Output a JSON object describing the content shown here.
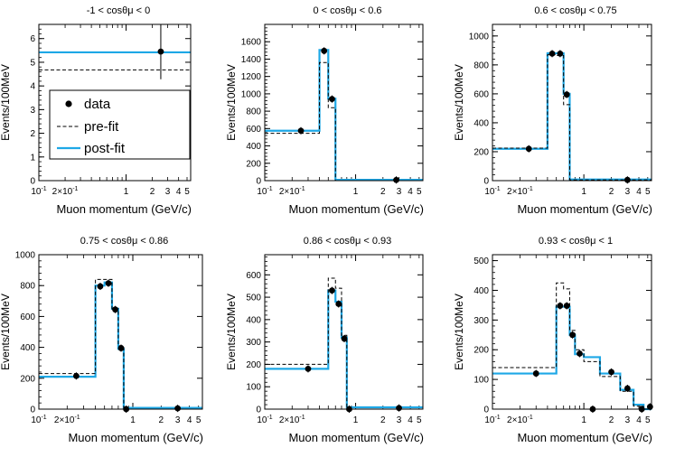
{
  "figure": {
    "ylabel": "Events/100MeV",
    "xlabel": "Muon momentum (GeV/c)",
    "legend": {
      "data": "data",
      "prefit": "pre-fit",
      "postfit": "post-fit",
      "placement": "left-center of first panel"
    },
    "colors": {
      "postfit": "#1ea8e6",
      "prefit": "#000000",
      "data": "#000000"
    }
  },
  "chart_data": [
    {
      "type": "histogram",
      "title": "-1 < cosθμ < 0",
      "xlabel": "Muon momentum (GeV/c)",
      "ylabel": "Events/100MeV",
      "xscale": "log",
      "xlim": [
        0.1,
        5.5
      ],
      "ylim": [
        0,
        6.6
      ],
      "yticks": [
        0,
        1,
        2,
        3,
        4,
        5,
        6
      ],
      "yticklabels": [
        "0",
        "1",
        "2",
        "3",
        "4",
        "5",
        "6"
      ],
      "edges": [
        0.1,
        5.5
      ],
      "prefit": [
        4.68
      ],
      "postfit": [
        5.42
      ],
      "data_x": [
        2.5
      ],
      "data_y": [
        5.45
      ],
      "legend": true
    },
    {
      "type": "histogram",
      "title": "0 < cosθμ < 0.6",
      "xlabel": "Muon momentum (GeV/c)",
      "ylabel": "Events/100MeV",
      "xscale": "log",
      "xlim": [
        0.1,
        5.5
      ],
      "ylim": [
        0,
        1800
      ],
      "yticks": [
        0,
        200,
        400,
        600,
        800,
        1000,
        1200,
        1400,
        1600
      ],
      "yticklabels": [
        "0",
        "200",
        "400",
        "600",
        "800",
        "1000",
        "1200",
        "1400",
        "1600"
      ],
      "edges": [
        0.1,
        0.4,
        0.5,
        0.6,
        5.5
      ],
      "prefit": [
        545,
        1360,
        840,
        0
      ],
      "postfit": [
        575,
        1505,
        945,
        10
      ],
      "data_x": [
        0.25,
        0.45,
        0.55,
        2.8
      ],
      "data_y": [
        575,
        1495,
        940,
        8
      ]
    },
    {
      "type": "histogram",
      "title": "0.6 < cosθμ < 0.75",
      "xlabel": "Muon momentum (GeV/c)",
      "ylabel": "Events/100MeV",
      "xscale": "log",
      "xlim": [
        0.1,
        5.5
      ],
      "ylim": [
        0,
        1080
      ],
      "yticks": [
        0,
        200,
        400,
        600,
        800,
        1000
      ],
      "yticklabels": [
        "0",
        "200",
        "400",
        "600",
        "800",
        "1000"
      ],
      "edges": [
        0.1,
        0.4,
        0.5,
        0.6,
        0.7,
        5.5
      ],
      "prefit": [
        225,
        870,
        865,
        525,
        5
      ],
      "postfit": [
        220,
        880,
        880,
        600,
        8
      ],
      "data_x": [
        0.25,
        0.45,
        0.55,
        0.65,
        3.0
      ],
      "data_y": [
        220,
        878,
        878,
        595,
        5
      ]
    },
    {
      "type": "histogram",
      "title": "0.75 < cosθμ < 0.86",
      "xlabel": "Muon momentum (GeV/c)",
      "ylabel": "Events/100MeV",
      "xscale": "log",
      "xlim": [
        0.1,
        5.5
      ],
      "ylim": [
        0,
        1000
      ],
      "yticks": [
        0,
        200,
        400,
        600,
        800,
        1000
      ],
      "yticklabels": [
        "0",
        "200",
        "400",
        "600",
        "800",
        "1000"
      ],
      "edges": [
        0.1,
        0.4,
        0.5,
        0.6,
        0.7,
        0.8,
        0.9,
        5.5
      ],
      "prefit": [
        230,
        840,
        840,
        650,
        410,
        0,
        0
      ],
      "postfit": [
        210,
        800,
        820,
        650,
        390,
        8,
        8
      ],
      "data_x": [
        0.25,
        0.45,
        0.55,
        0.65,
        0.75,
        0.85,
        3.0
      ],
      "data_y": [
        215,
        795,
        815,
        645,
        395,
        0,
        5
      ]
    },
    {
      "type": "histogram",
      "title": "0.86 < cosθμ < 0.93",
      "xlabel": "Muon momentum (GeV/c)",
      "ylabel": "Events/100MeV",
      "xscale": "log",
      "xlim": [
        0.1,
        5.5
      ],
      "ylim": [
        0,
        690
      ],
      "yticks": [
        0,
        100,
        200,
        300,
        400,
        500,
        600
      ],
      "yticklabels": [
        "0",
        "100",
        "200",
        "300",
        "400",
        "500",
        "600"
      ],
      "edges": [
        0.1,
        0.5,
        0.6,
        0.7,
        0.8,
        0.9,
        5.5
      ],
      "prefit": [
        200,
        585,
        540,
        330,
        0,
        0
      ],
      "postfit": [
        180,
        530,
        480,
        320,
        8,
        8
      ],
      "data_x": [
        0.3,
        0.55,
        0.65,
        0.75,
        0.85,
        3.0
      ],
      "data_y": [
        180,
        530,
        470,
        315,
        0,
        5
      ]
    },
    {
      "type": "histogram",
      "title": "0.93 < cosθμ < 1",
      "xlabel": "Muon momentum (GeV/c)",
      "ylabel": "Events/100MeV",
      "xscale": "log",
      "xlim": [
        0.1,
        5.5
      ],
      "ylim": [
        0,
        520
      ],
      "yticks": [
        0,
        100,
        200,
        300,
        400,
        500
      ],
      "yticklabels": [
        "0",
        "100",
        "200",
        "300",
        "400",
        "500"
      ],
      "edges": [
        0.1,
        0.5,
        0.6,
        0.7,
        0.8,
        1.0,
        1.5,
        2.5,
        3.5,
        4.5,
        5.5
      ],
      "prefit": [
        140,
        425,
        405,
        265,
        200,
        160,
        110,
        60,
        10,
        0
      ],
      "postfit": [
        120,
        345,
        345,
        250,
        185,
        175,
        120,
        65,
        15,
        0
      ],
      "data_x": [
        0.3,
        0.55,
        0.65,
        0.75,
        0.9,
        1.25,
        2.0,
        3.0,
        4.3,
        5.3
      ],
      "data_y": [
        120,
        348,
        348,
        250,
        187,
        0,
        125,
        70,
        0,
        8
      ]
    }
  ]
}
